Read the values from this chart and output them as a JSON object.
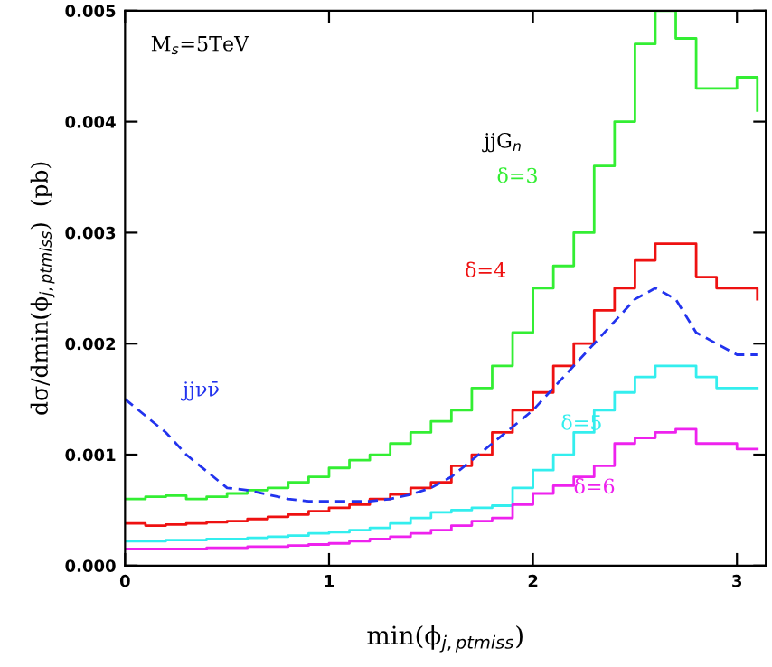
{
  "chart_data": {
    "type": "step",
    "xlabel": "min(ϕ$_{j,ptmiss}$)",
    "ylabel": "dσ/dmin(ϕ$_{j,ptmiss}$)  (pb)",
    "annotations": [
      "M$_{s}$=5TeV",
      "jjG$_{n}$"
    ],
    "x": [
      0.0,
      0.1,
      0.2,
      0.3,
      0.4,
      0.5,
      0.6,
      0.7,
      0.8,
      0.9,
      1.0,
      1.1,
      1.2,
      1.3,
      1.4,
      1.5,
      1.6,
      1.7,
      1.8,
      1.9,
      2.0,
      2.1,
      2.2,
      2.3,
      2.4,
      2.5,
      2.6,
      2.7,
      2.8,
      2.9,
      3.0,
      3.1
    ],
    "series": [
      {
        "name": "δ=3",
        "color": "#33ee33",
        "values": [
          0.0006,
          0.00062,
          0.00063,
          0.0006,
          0.00062,
          0.00065,
          0.00068,
          0.0007,
          0.00075,
          0.0008,
          0.00088,
          0.00095,
          0.001,
          0.0011,
          0.0012,
          0.0013,
          0.0014,
          0.0016,
          0.0018,
          0.0021,
          0.0025,
          0.0027,
          0.003,
          0.0036,
          0.004,
          0.0047,
          0.005,
          0.00475,
          0.0043,
          0.0043,
          0.0044,
          0.0041
        ]
      },
      {
        "name": "δ=4",
        "color": "#ee1111",
        "values": [
          0.00038,
          0.00036,
          0.00037,
          0.00038,
          0.00039,
          0.0004,
          0.00042,
          0.00044,
          0.00046,
          0.00049,
          0.00052,
          0.00055,
          0.0006,
          0.00064,
          0.0007,
          0.00075,
          0.0009,
          0.001,
          0.0012,
          0.0014,
          0.00156,
          0.0018,
          0.002,
          0.0023,
          0.0025,
          0.00275,
          0.0029,
          0.0029,
          0.0026,
          0.0025,
          0.0025,
          0.0024
        ]
      },
      {
        "name": "δ=5",
        "color": "#33eeee",
        "values": [
          0.00022,
          0.00022,
          0.00023,
          0.00023,
          0.00024,
          0.00024,
          0.00025,
          0.00026,
          0.00027,
          0.00029,
          0.0003,
          0.00032,
          0.00034,
          0.00038,
          0.00043,
          0.00048,
          0.0005,
          0.00052,
          0.00054,
          0.0007,
          0.00086,
          0.001,
          0.0012,
          0.0014,
          0.00156,
          0.0017,
          0.0018,
          0.0018,
          0.0017,
          0.0016,
          0.0016,
          0.0016
        ]
      },
      {
        "name": "δ=6",
        "color": "#ee22ee",
        "values": [
          0.00015,
          0.00015,
          0.00015,
          0.00015,
          0.00016,
          0.00016,
          0.00017,
          0.00017,
          0.00018,
          0.00019,
          0.0002,
          0.00022,
          0.00024,
          0.00026,
          0.00029,
          0.00032,
          0.00036,
          0.0004,
          0.00043,
          0.00055,
          0.00065,
          0.00072,
          0.0008,
          0.0009,
          0.0011,
          0.00115,
          0.0012,
          0.00123,
          0.0011,
          0.0011,
          0.00105,
          0.00105
        ]
      },
      {
        "name": "jjνν̄",
        "color": "#2233ee",
        "type": "line",
        "line_style": "dashed",
        "values": [
          0.0015,
          0.00135,
          0.0012,
          0.001,
          0.00085,
          0.0007,
          0.00068,
          0.00064,
          0.0006,
          0.00058,
          0.00058,
          0.00058,
          0.00058,
          0.0006,
          0.00064,
          0.0007,
          0.0008,
          0.00095,
          0.0011,
          0.00125,
          0.0014,
          0.0016,
          0.0018,
          0.002,
          0.0022,
          0.0024,
          0.0025,
          0.0024,
          0.0021,
          0.002,
          0.0019,
          0.0019
        ]
      }
    ],
    "xlim": [
      0,
      3.1416
    ],
    "xticks": [
      0,
      1,
      2,
      3
    ],
    "ylim": [
      0,
      0.005
    ],
    "yticks": [
      {
        "value": 0,
        "label": "0.000"
      },
      {
        "value": 0.001,
        "label": "0.001"
      },
      {
        "value": 0.002,
        "label": "0.002"
      },
      {
        "value": 0.003,
        "label": "0.003"
      },
      {
        "value": 0.004,
        "label": "0.004"
      },
      {
        "value": 0.005,
        "label": "0.005"
      }
    ],
    "grid": false,
    "legend": false
  }
}
